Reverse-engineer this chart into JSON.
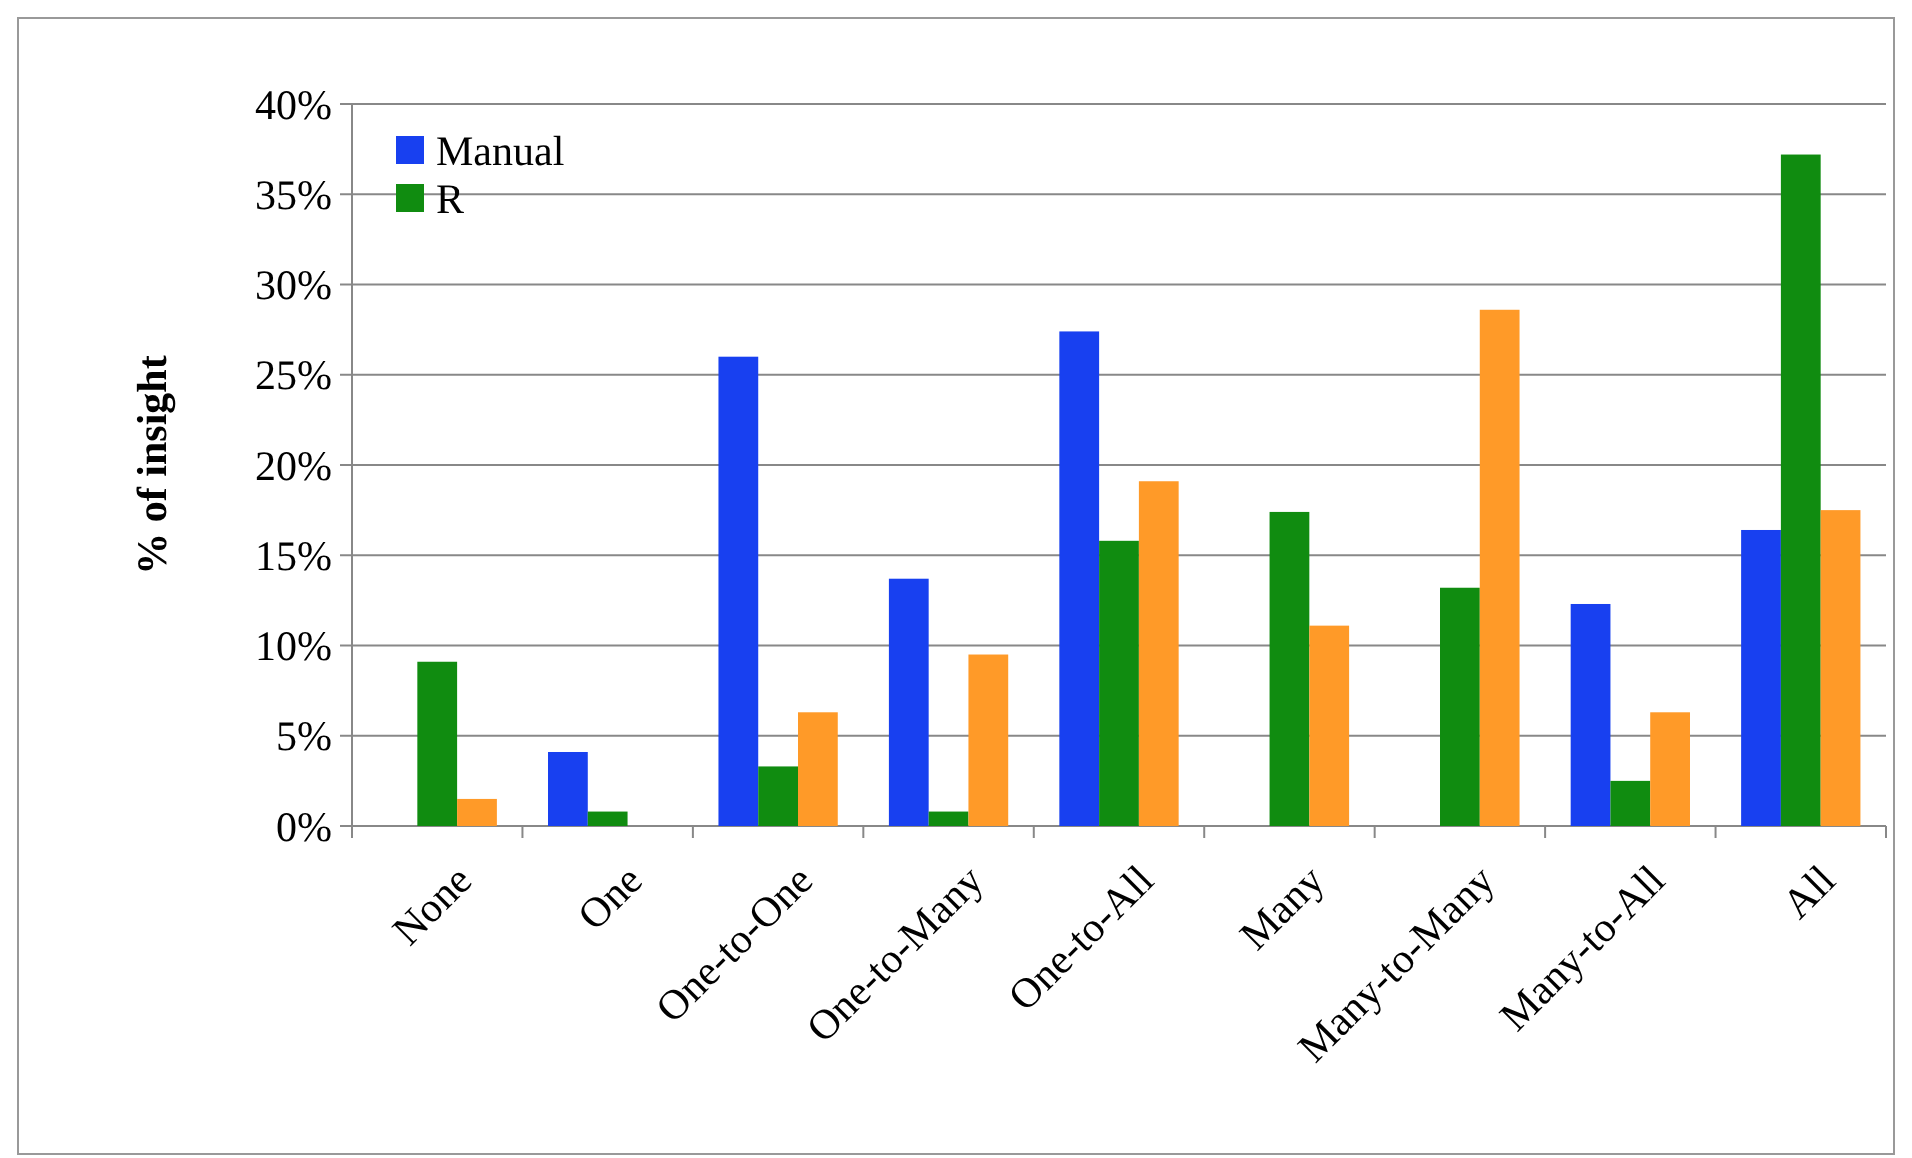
{
  "chart_data": {
    "type": "bar",
    "ylabel": "% of insight",
    "categories": [
      "None",
      "One",
      "One-to-One",
      "One-to-Many",
      "One-to-All",
      "Many",
      "Many-to-Many",
      "Many-to-All",
      "All"
    ],
    "series": [
      {
        "name": "Manual",
        "color": "#1840f0",
        "values": [
          0,
          4.1,
          26.0,
          13.7,
          27.4,
          0,
          0,
          12.3,
          16.4
        ]
      },
      {
        "name": "R",
        "color": "#108c10",
        "values": [
          9.1,
          0.8,
          3.3,
          0.8,
          15.8,
          17.4,
          13.2,
          2.5,
          37.2
        ]
      },
      {
        "color": "#ff9a28",
        "values": [
          1.5,
          0,
          6.3,
          9.5,
          19.1,
          11.1,
          28.6,
          6.3,
          17.5
        ]
      }
    ],
    "ylim": [
      0,
      40
    ],
    "yticks": [
      {
        "value": 0,
        "label": "0%"
      },
      {
        "value": 5,
        "label": "5%"
      },
      {
        "value": 10,
        "label": "10%"
      },
      {
        "value": 15,
        "label": "15%"
      },
      {
        "value": 20,
        "label": "20%"
      },
      {
        "value": 25,
        "label": "25%"
      },
      {
        "value": 30,
        "label": "30%"
      },
      {
        "value": 35,
        "label": "35%"
      },
      {
        "value": 40,
        "label": "40%"
      }
    ],
    "grid": "y",
    "legend": "top left"
  }
}
